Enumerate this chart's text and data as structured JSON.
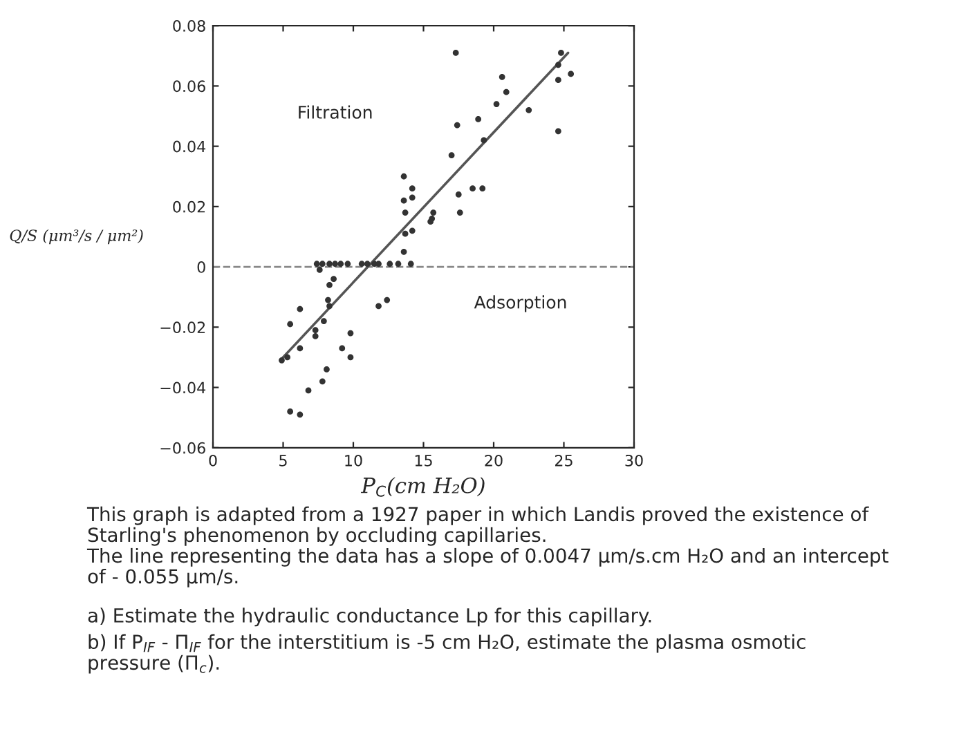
{
  "chart_data": {
    "type": "scatter",
    "xlabel": "P$_{C}$(cm H₂O)",
    "ylabel": "Q/S (μm³/s / μm²)",
    "xlim": [
      0,
      30
    ],
    "xticks": [
      0,
      5,
      10,
      15,
      20,
      25,
      30
    ],
    "ylim": [
      -0.06,
      0.08
    ],
    "yticks": [
      {
        "value": -0.06,
        "label": "−0.06"
      },
      {
        "value": -0.04,
        "label": "−0.04"
      },
      {
        "value": -0.02,
        "label": "−0.02"
      },
      0,
      0.02,
      0.04,
      0.06,
      0.08
    ],
    "grid": false,
    "series": [
      {
        "color": "#333333",
        "marker": "circle",
        "x": [
          17.3,
          24.8,
          24.6,
          24.6,
          25.5,
          24.6,
          20.6,
          20.9,
          20.2,
          22.5,
          18.9,
          17.4,
          19.3,
          17.0,
          17.5,
          18.5,
          19.2,
          17.6,
          13.6,
          13.6,
          14.2,
          14.2,
          13.7,
          15.7,
          15.6,
          15.5,
          14.2,
          13.7,
          13.6,
          7.4,
          7.8,
          8.3,
          8.7,
          9.1,
          9.6,
          10.6,
          11.0,
          11.5,
          11.8,
          12.6,
          13.2,
          14.1,
          7.6,
          8.6,
          8.3,
          8.2,
          8.3,
          6.2,
          5.5,
          11.8,
          12.4,
          7.9,
          7.3,
          7.3,
          9.8,
          9.2,
          9.8,
          6.2,
          4.9,
          5.3,
          8.1,
          7.8,
          6.8,
          5.5,
          6.2
        ],
        "values": [
          0.071,
          0.071,
          0.067,
          0.062,
          0.064,
          0.045,
          0.063,
          0.058,
          0.054,
          0.052,
          0.049,
          0.047,
          0.042,
          0.037,
          0.024,
          0.026,
          0.026,
          0.018,
          0.03,
          0.022,
          0.026,
          0.023,
          0.018,
          0.018,
          0.016,
          0.015,
          0.012,
          0.011,
          0.005,
          0.001,
          0.001,
          0.001,
          0.001,
          0.001,
          0.001,
          0.001,
          0.001,
          0.001,
          0.001,
          0.001,
          0.001,
          0.001,
          -0.001,
          -0.004,
          -0.006,
          -0.011,
          -0.013,
          -0.014,
          -0.019,
          -0.013,
          -0.011,
          -0.018,
          -0.021,
          -0.023,
          -0.022,
          -0.027,
          -0.03,
          -0.027,
          -0.031,
          -0.03,
          -0.034,
          -0.038,
          -0.041,
          -0.048,
          -0.049
        ]
      },
      {
        "type": "line",
        "color": "#555555",
        "x": [
          4.8,
          25.3
        ],
        "values": [
          -0.031,
          0.071
        ]
      }
    ],
    "ref_lines": [
      {
        "axis": "y",
        "value": 0,
        "color": "#888888",
        "line_style": "dashed"
      }
    ],
    "annotations": [
      "Filtration",
      "Adsorption",
      "This graph is adapted from a 1927 paper in which Landis proved the existence of\nStarling's phenomenon by occluding capillaries.\nThe line representing the data has a slope of 0.0047 μm/s.cm H₂O and an intercept\nof - 0.055 μm/s.",
      "a) Estimate the hydraulic conductance Lp for this capillary.",
      "b) If P$_{IF}$ - Π$_{IF}$ for the interstitium is -5 cm H₂O, estimate the plasma osmotic\npressure (Π$_{c}$)."
    ]
  }
}
